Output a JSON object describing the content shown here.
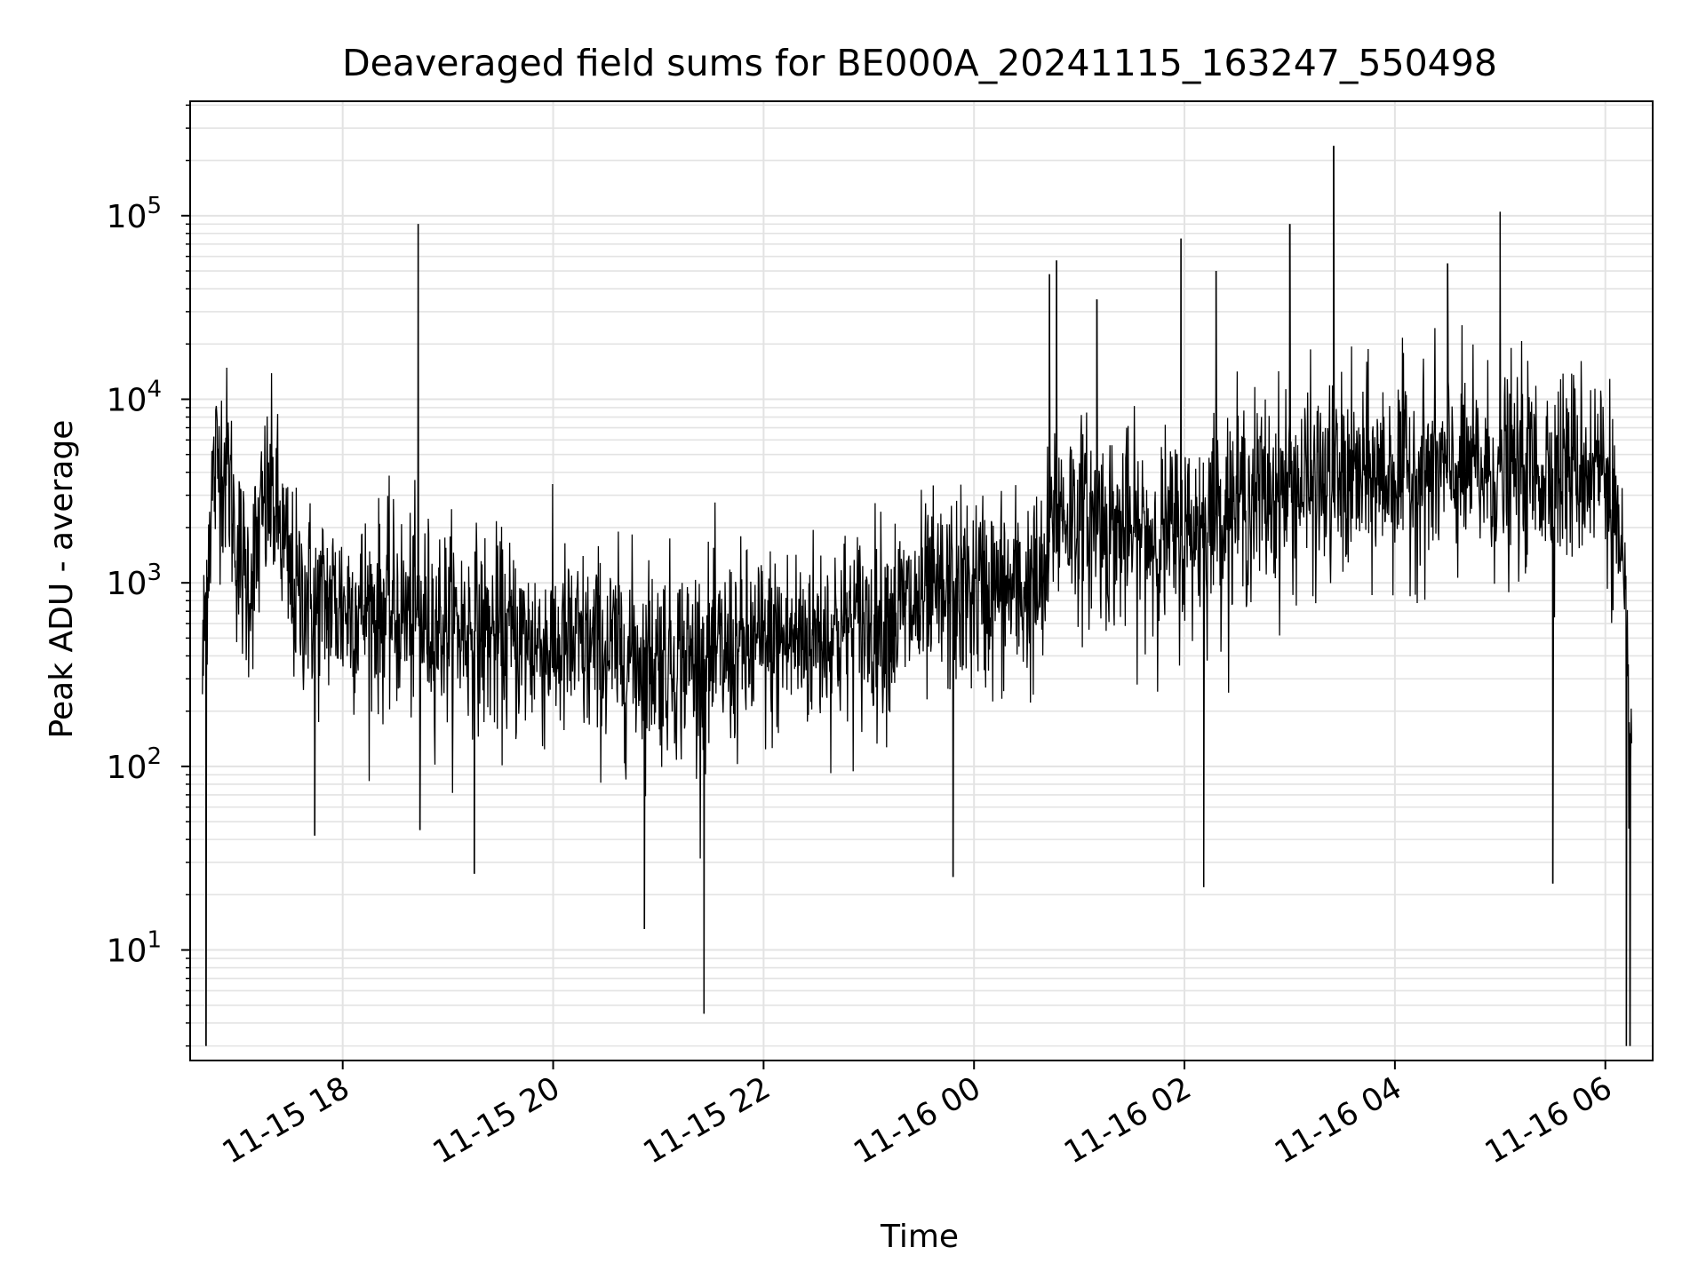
{
  "chart_data": {
    "type": "line",
    "title": "Deaveraged field sums for BE000A_20241115_163247_550498",
    "xlabel": "Time",
    "ylabel": "Peak ADU - average",
    "yscale": "log",
    "ylim": [
      2.5,
      420000
    ],
    "xlim": [
      "2024-11-15 16:33",
      "2024-11-16 06:27"
    ],
    "grid": true,
    "legend": "none",
    "x_ticks": [
      "11-15 18",
      "11-15 20",
      "11-15 22",
      "11-16 00",
      "11-16 02",
      "11-16 04",
      "11-16 06"
    ],
    "y_ticks": [
      {
        "base": "10",
        "exp": "1"
      },
      {
        "base": "10",
        "exp": "2"
      },
      {
        "base": "10",
        "exp": "3"
      },
      {
        "base": "10",
        "exp": "4"
      },
      {
        "base": "10",
        "exp": "5"
      }
    ],
    "colors": {
      "line": "#000000",
      "grid": "#e3e3e3",
      "axes": "#000000"
    },
    "series": [
      {
        "x": [
          "2024-11-15 16:40",
          "2024-11-15 16:43",
          "2024-11-15 16:46",
          "2024-11-15 16:50",
          "2024-11-15 16:55",
          "2024-11-15 17:00",
          "2024-11-15 17:05",
          "2024-11-15 17:10",
          "2024-11-15 17:15",
          "2024-11-15 17:20",
          "2024-11-15 17:25",
          "2024-11-15 17:30",
          "2024-11-15 17:35",
          "2024-11-15 17:40",
          "2024-11-15 17:45",
          "2024-11-15 17:50",
          "2024-11-15 18:00",
          "2024-11-15 18:30",
          "2024-11-15 18:40",
          "2024-11-15 19:00",
          "2024-11-15 19:30",
          "2024-11-15 20:00",
          "2024-11-15 20:30",
          "2024-11-15 21:00",
          "2024-11-15 21:30",
          "2024-11-15 22:00",
          "2024-11-15 22:30",
          "2024-11-15 23:00",
          "2024-11-15 23:30",
          "2024-11-16 00:00",
          "2024-11-16 00:40",
          "2024-11-16 00:45",
          "2024-11-16 01:00",
          "2024-11-16 01:30",
          "2024-11-16 02:00",
          "2024-11-16 02:30",
          "2024-11-16 03:00",
          "2024-11-16 03:30",
          "2024-11-16 04:00",
          "2024-11-16 04:30",
          "2024-11-16 05:00",
          "2024-11-16 05:30",
          "2024-11-16 06:00",
          "2024-11-16 06:05",
          "2024-11-16 06:10",
          "2024-11-16 06:15"
        ],
        "values": [
          300,
          1500,
          3500,
          5000,
          4000,
          1500,
          1000,
          1300,
          2500,
          3000,
          1800,
          1000,
          800,
          900,
          700,
          800,
          750,
          700,
          650,
          600,
          500,
          450,
          420,
          400,
          380,
          450,
          520,
          600,
          750,
          900,
          900,
          2500,
          2300,
          1800,
          1800,
          2800,
          3300,
          3500,
          4000,
          4000,
          4000,
          4200,
          4500,
          2500,
          800,
          100
        ]
      }
    ],
    "spikes": [
      {
        "x": "2024-11-15 16:42",
        "value": 3
      },
      {
        "x": "2024-11-15 17:44",
        "value": 42
      },
      {
        "x": "2024-11-15 18:43",
        "value": 90000
      },
      {
        "x": "2024-11-15 18:44",
        "value": 45
      },
      {
        "x": "2024-11-15 19:15",
        "value": 26
      },
      {
        "x": "2024-11-15 20:52",
        "value": 13
      },
      {
        "x": "2024-11-15 21:26",
        "value": 4.5
      },
      {
        "x": "2024-11-15 23:48",
        "value": 25
      },
      {
        "x": "2024-11-16 00:43",
        "value": 48000
      },
      {
        "x": "2024-11-16 00:47",
        "value": 57000
      },
      {
        "x": "2024-11-16 01:10",
        "value": 35000
      },
      {
        "x": "2024-11-16 01:58",
        "value": 75000
      },
      {
        "x": "2024-11-16 02:11",
        "value": 22
      },
      {
        "x": "2024-11-16 02:18",
        "value": 50000
      },
      {
        "x": "2024-11-16 03:00",
        "value": 90000
      },
      {
        "x": "2024-11-16 03:25",
        "value": 240000
      },
      {
        "x": "2024-11-16 04:30",
        "value": 55000
      },
      {
        "x": "2024-11-16 05:00",
        "value": 105000
      },
      {
        "x": "2024-11-16 05:30",
        "value": 23
      },
      {
        "x": "2024-11-16 06:12",
        "value": 3
      },
      {
        "x": "2024-11-16 06:14",
        "value": 3
      }
    ]
  }
}
